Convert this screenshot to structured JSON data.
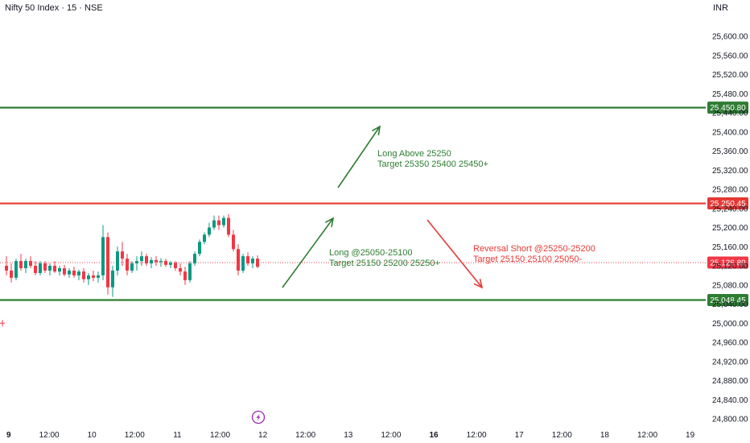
{
  "header": {
    "title": "Nifty 50 Index · 15 · NSE",
    "currency": "INR"
  },
  "colors": {
    "up": "#089981",
    "down": "#f23645",
    "support": "#2e7d32",
    "resistance": "#e53935",
    "arrow_green": "#2e7d32",
    "arrow_red": "#e53935",
    "text_green": "#2e7d32",
    "text_red": "#e53935",
    "axis_text": "#131722"
  },
  "chart_data": {
    "type": "candlestick",
    "ylim": [
      24780,
      25640
    ],
    "y_ticks": [
      {
        "value": 25600,
        "label": "25,600.00"
      },
      {
        "value": 25560,
        "label": "25,560.00"
      },
      {
        "value": 25520,
        "label": "25,520.00"
      },
      {
        "value": 25480,
        "label": "25,480.00"
      },
      {
        "value": 25440,
        "label": "25,440.00"
      },
      {
        "value": 25400,
        "label": "25,400.00"
      },
      {
        "value": 25360,
        "label": "25,360.00"
      },
      {
        "value": 25320,
        "label": "25,320.00"
      },
      {
        "value": 25280,
        "label": "25,280.00"
      },
      {
        "value": 25240,
        "label": "25,240.00"
      },
      {
        "value": 25200,
        "label": "25,200.00"
      },
      {
        "value": 25160,
        "label": "25,160.00"
      },
      {
        "value": 25120,
        "label": "25,120.00"
      },
      {
        "value": 25080,
        "label": "25,080.00"
      },
      {
        "value": 25040,
        "label": "25,040.00"
      },
      {
        "value": 25000,
        "label": "25,000.00"
      },
      {
        "value": 24960,
        "label": "24,960.00"
      },
      {
        "value": 24920,
        "label": "24,920.00"
      },
      {
        "value": 24880,
        "label": "24,880.00"
      },
      {
        "value": 24840,
        "label": "24,840.00"
      },
      {
        "value": 24800,
        "label": "24,800.00"
      }
    ],
    "x_ticks": [
      {
        "label": "9",
        "bold": true
      },
      {
        "label": "12:00",
        "bold": false
      },
      {
        "label": "10",
        "bold": false
      },
      {
        "label": "12:00",
        "bold": false
      },
      {
        "label": "11",
        "bold": false
      },
      {
        "label": "12:00",
        "bold": false
      },
      {
        "label": "12",
        "bold": false
      },
      {
        "label": "12:00",
        "bold": false
      },
      {
        "label": "13",
        "bold": false
      },
      {
        "label": "12:00",
        "bold": false
      },
      {
        "label": "16",
        "bold": true
      },
      {
        "label": "12:00",
        "bold": false
      },
      {
        "label": "17",
        "bold": false
      },
      {
        "label": "12:00",
        "bold": false
      },
      {
        "label": "18",
        "bold": false
      },
      {
        "label": "12:00",
        "bold": false
      },
      {
        "label": "19",
        "bold": false
      }
    ],
    "horizontal_levels": [
      {
        "value": 25450.8,
        "label": "25,450.80",
        "role": "support"
      },
      {
        "value": 25250.45,
        "label": "25,250.45",
        "role": "resistance"
      },
      {
        "value": 25126.8,
        "label": "25,126.80",
        "role": "price"
      },
      {
        "value": 25048.45,
        "label": "25,048.45",
        "role": "support"
      }
    ],
    "candles": [
      [
        25120,
        25140,
        25100,
        25110
      ],
      [
        25110,
        25125,
        25085,
        25095
      ],
      [
        25095,
        25135,
        25090,
        25130
      ],
      [
        25130,
        25145,
        25110,
        25115
      ],
      [
        25115,
        25135,
        25105,
        25130
      ],
      [
        25130,
        25140,
        25115,
        25120
      ],
      [
        25120,
        25130,
        25100,
        25105
      ],
      [
        25105,
        25130,
        25100,
        25125
      ],
      [
        25125,
        25130,
        25105,
        25110
      ],
      [
        25110,
        25125,
        25100,
        25120
      ],
      [
        25120,
        25130,
        25105,
        25108
      ],
      [
        25108,
        25120,
        25100,
        25115
      ],
      [
        25115,
        25122,
        25098,
        25102
      ],
      [
        25102,
        25115,
        25095,
        25110
      ],
      [
        25110,
        25118,
        25095,
        25100
      ],
      [
        25100,
        25112,
        25090,
        25108
      ],
      [
        25108,
        25115,
        25085,
        25092
      ],
      [
        25092,
        25105,
        25080,
        25100
      ],
      [
        25100,
        25110,
        25088,
        25095
      ],
      [
        25095,
        25108,
        25085,
        25100
      ],
      [
        25100,
        25205,
        25090,
        25180
      ],
      [
        25180,
        25190,
        25060,
        25075
      ],
      [
        25075,
        25120,
        25055,
        25110
      ],
      [
        25110,
        25160,
        25100,
        25150
      ],
      [
        25150,
        25170,
        25120,
        25135
      ],
      [
        25135,
        25145,
        25100,
        25110
      ],
      [
        25110,
        25130,
        25105,
        25125
      ],
      [
        25125,
        25140,
        25110,
        25130
      ],
      [
        25130,
        25150,
        25120,
        25140
      ],
      [
        25140,
        25145,
        25120,
        25125
      ],
      [
        25125,
        25138,
        25115,
        25132
      ],
      [
        25132,
        25140,
        25120,
        25128
      ],
      [
        25128,
        25136,
        25118,
        25130
      ],
      [
        25130,
        25135,
        25118,
        25122
      ],
      [
        25122,
        25130,
        25115,
        25126
      ],
      [
        25126,
        25130,
        25110,
        25115
      ],
      [
        25115,
        25125,
        25100,
        25108
      ],
      [
        25108,
        25118,
        25080,
        25090
      ],
      [
        25090,
        25130,
        25085,
        25125
      ],
      [
        25125,
        25150,
        25120,
        25145
      ],
      [
        25145,
        25175,
        25140,
        25170
      ],
      [
        25170,
        25190,
        25165,
        25185
      ],
      [
        25185,
        25210,
        25180,
        25200
      ],
      [
        25200,
        25225,
        25195,
        25215
      ],
      [
        25215,
        25225,
        25195,
        25205
      ],
      [
        25205,
        25225,
        25200,
        25220
      ],
      [
        25220,
        25228,
        25180,
        25185
      ],
      [
        25185,
        25195,
        25150,
        25155
      ],
      [
        25155,
        25165,
        25100,
        25110
      ],
      [
        25110,
        25145,
        25105,
        25140
      ],
      [
        25140,
        25148,
        25120,
        25125
      ],
      [
        25125,
        25140,
        25115,
        25135
      ],
      [
        25135,
        25142,
        25115,
        25118
      ]
    ]
  },
  "annotations": {
    "long_above_line1": "Long Above 25250",
    "long_above_line2": "Target 25350 25400 25450+",
    "long_line1": "Long @25050-25100",
    "long_line2": "Target 25150 25200 25250+",
    "short_line1": "Reversal Short @25250-25200",
    "short_line2": "Target 25150 25100 25050-"
  },
  "icons": {
    "flash": "flash-icon"
  }
}
